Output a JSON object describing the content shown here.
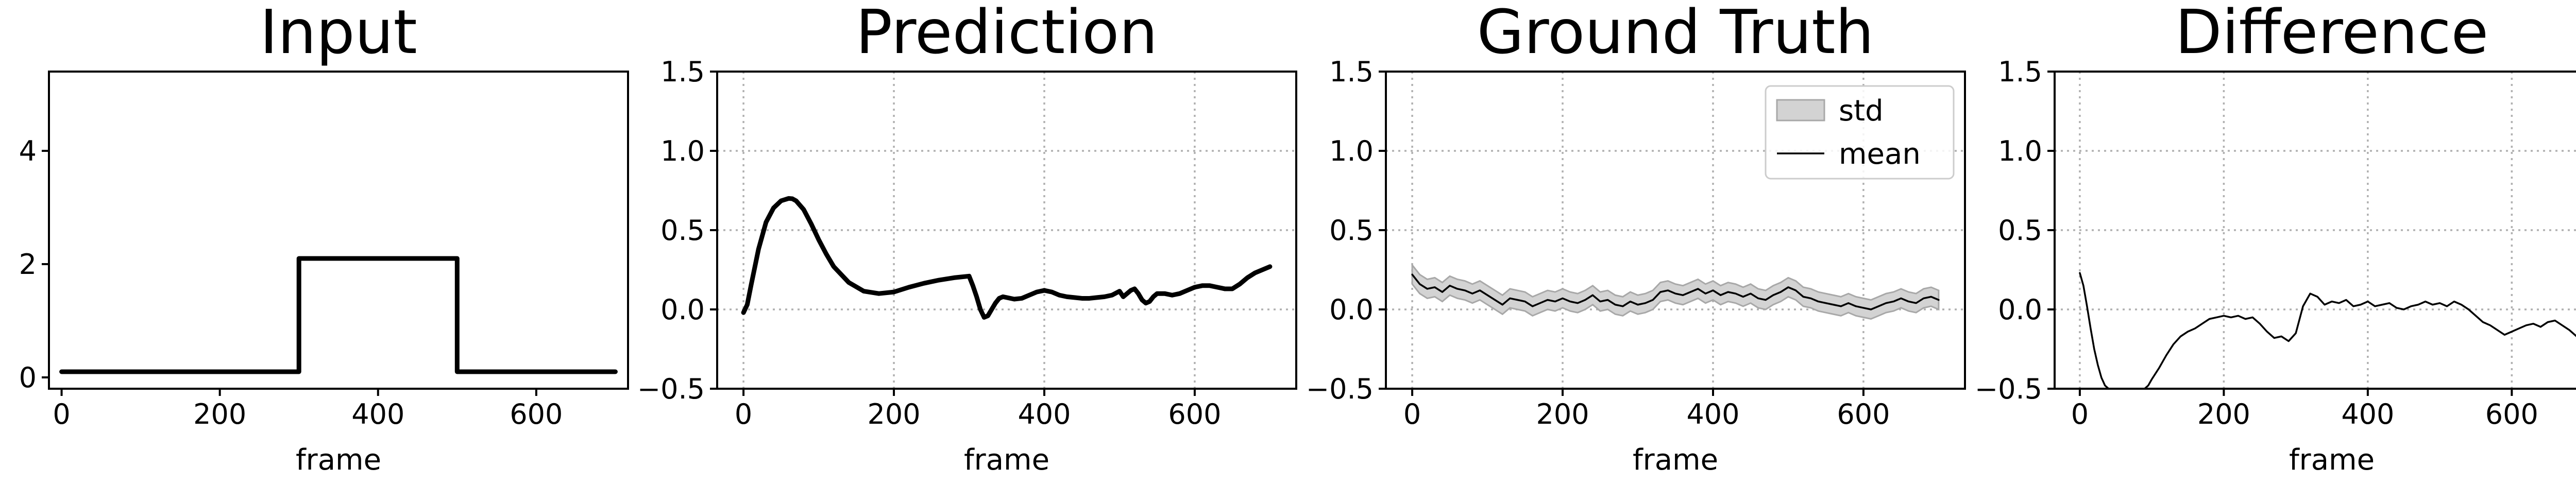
{
  "chart_data": [
    {
      "type": "line",
      "title": "Input",
      "xlabel": "frame",
      "ylabel": "",
      "xlim": [
        -16,
        716
      ],
      "ylim": [
        -0.2,
        5.4
      ],
      "xticks": [
        0,
        200,
        400,
        600
      ],
      "yticks": [
        0,
        2,
        4
      ],
      "xtick_labels": [
        "0",
        "200",
        "400",
        "600"
      ],
      "ytick_labels": [
        "0",
        "2",
        "4"
      ],
      "grid": false,
      "series": [
        {
          "x": [
            0,
            300,
            300,
            500,
            500,
            700
          ],
          "y": [
            0.1,
            0.1,
            2.1,
            2.1,
            0.1,
            0.1
          ],
          "color": "#000000"
        }
      ]
    },
    {
      "type": "line",
      "title": "Prediction",
      "xlabel": "frame",
      "ylabel": "",
      "xlim": [
        -35,
        735
      ],
      "ylim": [
        -0.5,
        1.5
      ],
      "xticks": [
        0,
        200,
        400,
        600
      ],
      "yticks": [
        -0.5,
        0.0,
        0.5,
        1.0,
        1.5
      ],
      "xtick_labels": [
        "0",
        "200",
        "400",
        "600"
      ],
      "ytick_labels": [
        "−0.5",
        "0.0",
        "0.5",
        "1.0",
        "1.5"
      ],
      "grid": true,
      "series": [
        {
          "x": [
            0,
            5,
            10,
            20,
            30,
            40,
            50,
            60,
            65,
            70,
            80,
            90,
            100,
            110,
            120,
            140,
            160,
            180,
            200,
            220,
            240,
            260,
            280,
            300,
            305,
            310,
            315,
            320,
            325,
            330,
            335,
            340,
            345,
            350,
            360,
            370,
            380,
            390,
            400,
            410,
            420,
            430,
            440,
            450,
            460,
            470,
            480,
            490,
            500,
            505,
            510,
            515,
            520,
            525,
            530,
            535,
            540,
            545,
            550,
            560,
            570,
            580,
            590,
            600,
            610,
            620,
            630,
            640,
            650,
            660,
            670,
            680,
            690,
            700
          ],
          "y": [
            -0.02,
            0.03,
            0.15,
            0.38,
            0.55,
            0.64,
            0.685,
            0.7,
            0.698,
            0.685,
            0.63,
            0.54,
            0.44,
            0.35,
            0.27,
            0.17,
            0.115,
            0.1,
            0.11,
            0.14,
            0.165,
            0.185,
            0.2,
            0.21,
            0.15,
            0.08,
            0.0,
            -0.05,
            -0.04,
            0.0,
            0.04,
            0.07,
            0.08,
            0.075,
            0.065,
            0.07,
            0.09,
            0.11,
            0.12,
            0.11,
            0.09,
            0.08,
            0.075,
            0.07,
            0.07,
            0.075,
            0.08,
            0.09,
            0.115,
            0.08,
            0.1,
            0.12,
            0.13,
            0.1,
            0.06,
            0.04,
            0.05,
            0.08,
            0.1,
            0.1,
            0.09,
            0.1,
            0.12,
            0.14,
            0.15,
            0.15,
            0.14,
            0.13,
            0.13,
            0.16,
            0.2,
            0.23,
            0.25,
            0.27
          ],
          "color": "#000000"
        }
      ]
    },
    {
      "type": "area",
      "title": "Ground Truth",
      "xlabel": "frame",
      "ylabel": "",
      "xlim": [
        -35,
        735
      ],
      "ylim": [
        -0.5,
        1.5
      ],
      "xticks": [
        0,
        200,
        400,
        600
      ],
      "yticks": [
        -0.5,
        0.0,
        0.5,
        1.0,
        1.5
      ],
      "xtick_labels": [
        "0",
        "200",
        "400",
        "600"
      ],
      "ytick_labels": [
        "−0.5",
        "0.0",
        "0.5",
        "1.0",
        "1.5"
      ],
      "grid": true,
      "legend": {
        "position": "top-right",
        "entries": [
          {
            "label": "std",
            "kind": "patch",
            "color": "#d3d3d3"
          },
          {
            "label": "mean",
            "kind": "line",
            "color": "#000000"
          }
        ]
      },
      "series": [
        {
          "name": "mean",
          "x": [
            0,
            10,
            20,
            30,
            40,
            50,
            60,
            70,
            80,
            90,
            100,
            110,
            120,
            130,
            140,
            150,
            160,
            170,
            180,
            190,
            200,
            210,
            220,
            230,
            240,
            250,
            260,
            270,
            280,
            290,
            300,
            310,
            320,
            330,
            340,
            350,
            360,
            370,
            380,
            390,
            400,
            410,
            420,
            430,
            440,
            450,
            460,
            470,
            480,
            490,
            500,
            510,
            520,
            530,
            540,
            550,
            560,
            570,
            580,
            590,
            600,
            610,
            620,
            630,
            640,
            650,
            660,
            670,
            680,
            690,
            700
          ],
          "y": [
            0.22,
            0.16,
            0.13,
            0.14,
            0.11,
            0.15,
            0.13,
            0.12,
            0.1,
            0.12,
            0.09,
            0.06,
            0.03,
            0.07,
            0.06,
            0.05,
            0.02,
            0.04,
            0.06,
            0.05,
            0.07,
            0.05,
            0.04,
            0.06,
            0.09,
            0.05,
            0.06,
            0.03,
            0.02,
            0.05,
            0.03,
            0.04,
            0.06,
            0.11,
            0.12,
            0.1,
            0.09,
            0.11,
            0.13,
            0.1,
            0.12,
            0.09,
            0.11,
            0.1,
            0.08,
            0.1,
            0.07,
            0.06,
            0.09,
            0.11,
            0.14,
            0.12,
            0.08,
            0.07,
            0.05,
            0.04,
            0.03,
            0.02,
            0.04,
            0.02,
            0.01,
            0.0,
            0.02,
            0.04,
            0.05,
            0.07,
            0.05,
            0.04,
            0.07,
            0.08,
            0.06
          ],
          "color": "#000000"
        },
        {
          "name": "std",
          "band": 0.06,
          "color": "#d3d3d3"
        }
      ]
    },
    {
      "type": "line",
      "title": "Difference",
      "xlabel": "frame",
      "ylabel": "",
      "xlim": [
        -35,
        735
      ],
      "ylim": [
        -0.5,
        1.5
      ],
      "xticks": [
        0,
        200,
        400,
        600
      ],
      "yticks": [
        -0.5,
        0.0,
        0.5,
        1.0,
        1.5
      ],
      "xtick_labels": [
        "0",
        "200",
        "400",
        "600"
      ],
      "ytick_labels": [
        "−0.5",
        "0.0",
        "0.5",
        "1.0",
        "1.5"
      ],
      "grid": true,
      "series": [
        {
          "x": [
            0,
            5,
            10,
            15,
            20,
            25,
            30,
            35,
            40,
            45,
            90,
            95,
            100,
            110,
            120,
            130,
            140,
            150,
            160,
            170,
            180,
            190,
            200,
            210,
            220,
            230,
            240,
            250,
            260,
            270,
            280,
            290,
            300,
            310,
            320,
            330,
            340,
            350,
            360,
            370,
            380,
            390,
            400,
            410,
            420,
            430,
            440,
            450,
            460,
            470,
            480,
            490,
            500,
            510,
            520,
            530,
            540,
            550,
            560,
            570,
            580,
            590,
            600,
            610,
            620,
            630,
            640,
            650,
            660,
            670,
            680,
            690,
            700
          ],
          "y": [
            0.23,
            0.15,
            0.02,
            -0.12,
            -0.25,
            -0.35,
            -0.43,
            -0.48,
            -0.5,
            -0.5,
            -0.5,
            -0.48,
            -0.44,
            -0.37,
            -0.29,
            -0.22,
            -0.17,
            -0.14,
            -0.12,
            -0.09,
            -0.06,
            -0.05,
            -0.04,
            -0.05,
            -0.04,
            -0.06,
            -0.05,
            -0.09,
            -0.14,
            -0.18,
            -0.17,
            -0.2,
            -0.15,
            0.02,
            0.1,
            0.08,
            0.03,
            0.05,
            0.04,
            0.06,
            0.02,
            0.03,
            0.05,
            0.02,
            0.03,
            0.04,
            0.01,
            0.0,
            0.02,
            0.03,
            0.05,
            0.03,
            0.04,
            0.02,
            0.05,
            0.03,
            0.0,
            -0.04,
            -0.08,
            -0.1,
            -0.13,
            -0.16,
            -0.14,
            -0.12,
            -0.1,
            -0.09,
            -0.11,
            -0.08,
            -0.07,
            -0.1,
            -0.13,
            -0.17,
            -0.2
          ],
          "color": "#000000"
        }
      ]
    }
  ]
}
